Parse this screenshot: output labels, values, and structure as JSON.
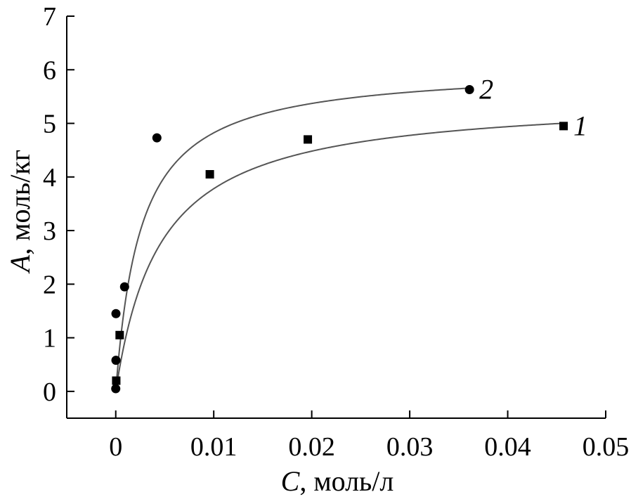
{
  "chart_data": {
    "type": "scatter",
    "xlabel_var": "C",
    "xlabel_unit": ", моль/л",
    "ylabel_var": "A",
    "ylabel_unit": ", моль/кг",
    "xlim": [
      -0.005,
      0.05
    ],
    "ylim": [
      -0.5,
      7
    ],
    "xticks": [
      0,
      0.01,
      0.02,
      0.03,
      0.04,
      0.05
    ],
    "xtick_labels": [
      "0",
      "0.01",
      "0.02",
      "0.03",
      "0.04",
      "0.05"
    ],
    "yticks": [
      0,
      1,
      2,
      3,
      4,
      5,
      6,
      7
    ],
    "ytick_labels": [
      "0",
      "1",
      "2",
      "3",
      "4",
      "5",
      "6",
      "7"
    ],
    "grid": false,
    "series": [
      {
        "name": "1",
        "marker": "square",
        "points": [
          [
            5e-05,
            0.2
          ],
          [
            0.0004,
            1.05
          ],
          [
            0.0096,
            4.05
          ],
          [
            0.0196,
            4.7
          ],
          [
            0.0457,
            4.95
          ]
        ],
        "fit": {
          "model": "langmuir",
          "amax": 5.5,
          "k": 220
        }
      },
      {
        "name": "2",
        "marker": "circle",
        "points": [
          [
            0.0,
            0.05
          ],
          [
            2e-05,
            0.58
          ],
          [
            2e-05,
            1.45
          ],
          [
            0.0009,
            1.95
          ],
          [
            0.0042,
            4.73
          ],
          [
            0.0361,
            5.63
          ]
        ],
        "fit": {
          "model": "langmuir",
          "amax": 6.06,
          "k": 390
        }
      }
    ]
  }
}
